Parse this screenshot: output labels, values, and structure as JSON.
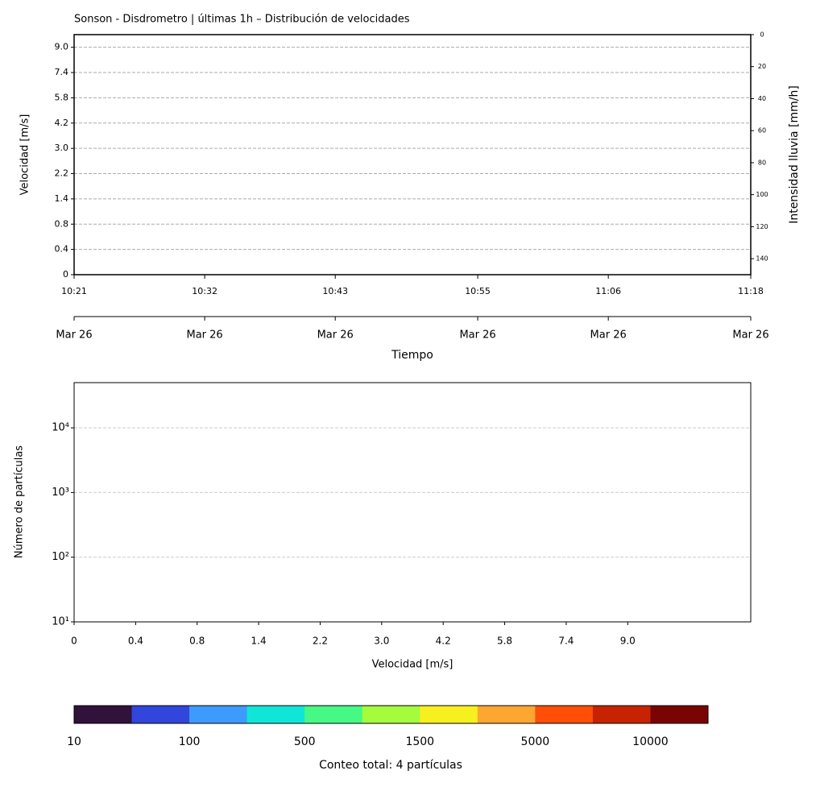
{
  "chart_data": [
    {
      "type": "heatmap",
      "title": "Sonson - Disdrometro | últimas 1h – Distribución de velocidades",
      "ylabel": "Velocidad [m/s]",
      "y_categories": [
        "0",
        "0.4",
        "0.8",
        "1.4",
        "2.2",
        "3.0",
        "4.2",
        "5.8",
        "7.4",
        "9.0"
      ],
      "y2label": "Intensidad lluvia [mm/h]",
      "y2lim": [
        0,
        150
      ],
      "y2ticks": [
        0,
        20,
        40,
        60,
        80,
        100,
        120,
        140
      ],
      "y2_inverted": true,
      "xlim": [
        "10:21",
        "11:18"
      ],
      "xticks": [
        "10:21",
        "10:32",
        "10:43",
        "10:55",
        "11:06",
        "11:18"
      ],
      "x2ticks": [
        "Mar 26",
        "Mar 26",
        "Mar 26",
        "Mar 26",
        "Mar 26",
        "Mar 26"
      ],
      "xlabel": "Tiempo",
      "grid": true
    },
    {
      "type": "histogram",
      "ylabel": "Número de partículas",
      "xlabel": "Velocidad [m/s]",
      "categories": [
        "0",
        "0.4",
        "0.8",
        "1.4",
        "2.2",
        "3.0",
        "4.2",
        "5.8",
        "7.4",
        "9.0"
      ],
      "log_y": true,
      "ylim": [
        10,
        50000
      ],
      "yticks": [
        {
          "value": 10,
          "label": "10¹"
        },
        {
          "value": 100,
          "label": "10²"
        },
        {
          "value": 1000,
          "label": "10³"
        },
        {
          "value": 10000,
          "label": "10⁴"
        }
      ],
      "grid": true
    },
    {
      "type": "colorbar",
      "label": "Conteo total: 4 partículas",
      "colors": [
        "#30123b",
        "#3246dc",
        "#3e9bfe",
        "#10e6d8",
        "#46f884",
        "#a4fc3c",
        "#f6f01e",
        "#fea632",
        "#fe4e08",
        "#c72303",
        "#7a0403"
      ],
      "ticks": [
        10,
        100,
        500,
        1500,
        5000,
        10000
      ]
    }
  ]
}
